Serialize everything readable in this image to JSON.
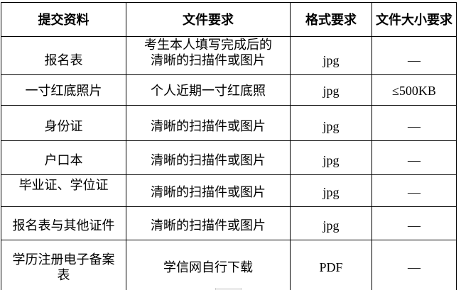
{
  "page": {
    "background_color": "#ffffff",
    "border_color": "#000000",
    "text_color": "#000000",
    "artifact_color": "#ebebeb"
  },
  "table": {
    "headers": [
      "提交资料",
      "文件要求",
      "格式要求",
      "文件大小要求"
    ],
    "rows": [
      {
        "material": "报名表",
        "requirement": "考生本人填写完成后的\n清晰的扫描件或图片",
        "format": "jpg",
        "size": "—"
      },
      {
        "material": "一寸红底照片",
        "requirement": "个人近期一寸红底照",
        "format": "jpg",
        "size": "≤500KB"
      },
      {
        "material": "身份证",
        "requirement": "清晰的扫描件或图片",
        "format": "jpg",
        "size": "—"
      },
      {
        "material": "户口本",
        "requirement": "清晰的扫描件或图片",
        "format": "jpg",
        "size": "—"
      },
      {
        "material": "毕业证、学位证",
        "requirement": "清晰的扫描件或图片",
        "format": "jpg",
        "size": "—"
      },
      {
        "material": "报名表与其他证件",
        "requirement": "清晰的扫描件或图片",
        "format": "jpg",
        "size": "—"
      },
      {
        "material": "学历注册电子备案\n表",
        "requirement": "学信网自行下载",
        "format": "PDF",
        "size": "—"
      }
    ]
  }
}
